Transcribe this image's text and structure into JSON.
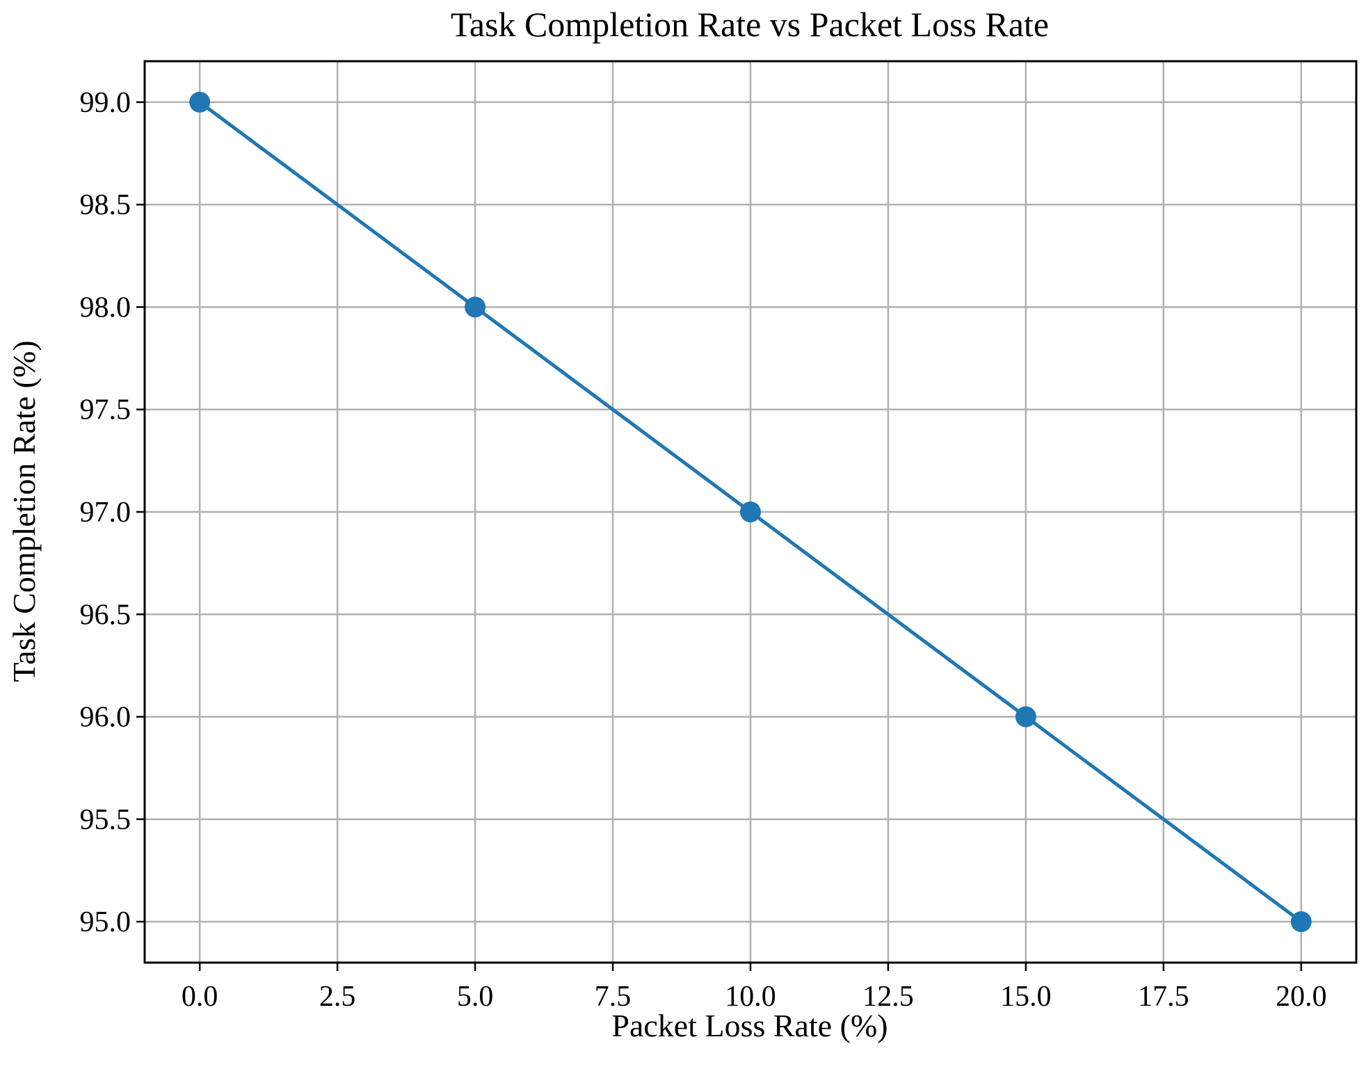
{
  "chart_data": {
    "type": "line",
    "title": "Task Completion Rate vs Packet Loss Rate",
    "xlabel": "Packet Loss Rate (%)",
    "ylabel": "Task Completion Rate (%)",
    "x": [
      0,
      5,
      10,
      15,
      20
    ],
    "series": [
      {
        "values": [
          99.0,
          98.0,
          97.0,
          96.0,
          95.0
        ],
        "color": "#1f77b4",
        "marker": "circle"
      }
    ],
    "xlim": [
      -1.0,
      21.0
    ],
    "ylim": [
      94.8,
      99.2
    ],
    "xticks": [
      0,
      2.5,
      5,
      7.5,
      10,
      12.5,
      15,
      17.5,
      20
    ],
    "xtick_labels": [
      "0.0",
      "2.5",
      "5.0",
      "7.5",
      "10.0",
      "12.5",
      "15.0",
      "17.5",
      "20.0"
    ],
    "yticks": [
      95,
      95.5,
      96,
      96.5,
      97,
      97.5,
      98,
      98.5,
      99
    ],
    "ytick_labels": [
      "95.0",
      "95.5",
      "96.0",
      "96.5",
      "97.0",
      "97.5",
      "98.0",
      "98.5",
      "99.0"
    ],
    "grid": true,
    "legend": false
  }
}
